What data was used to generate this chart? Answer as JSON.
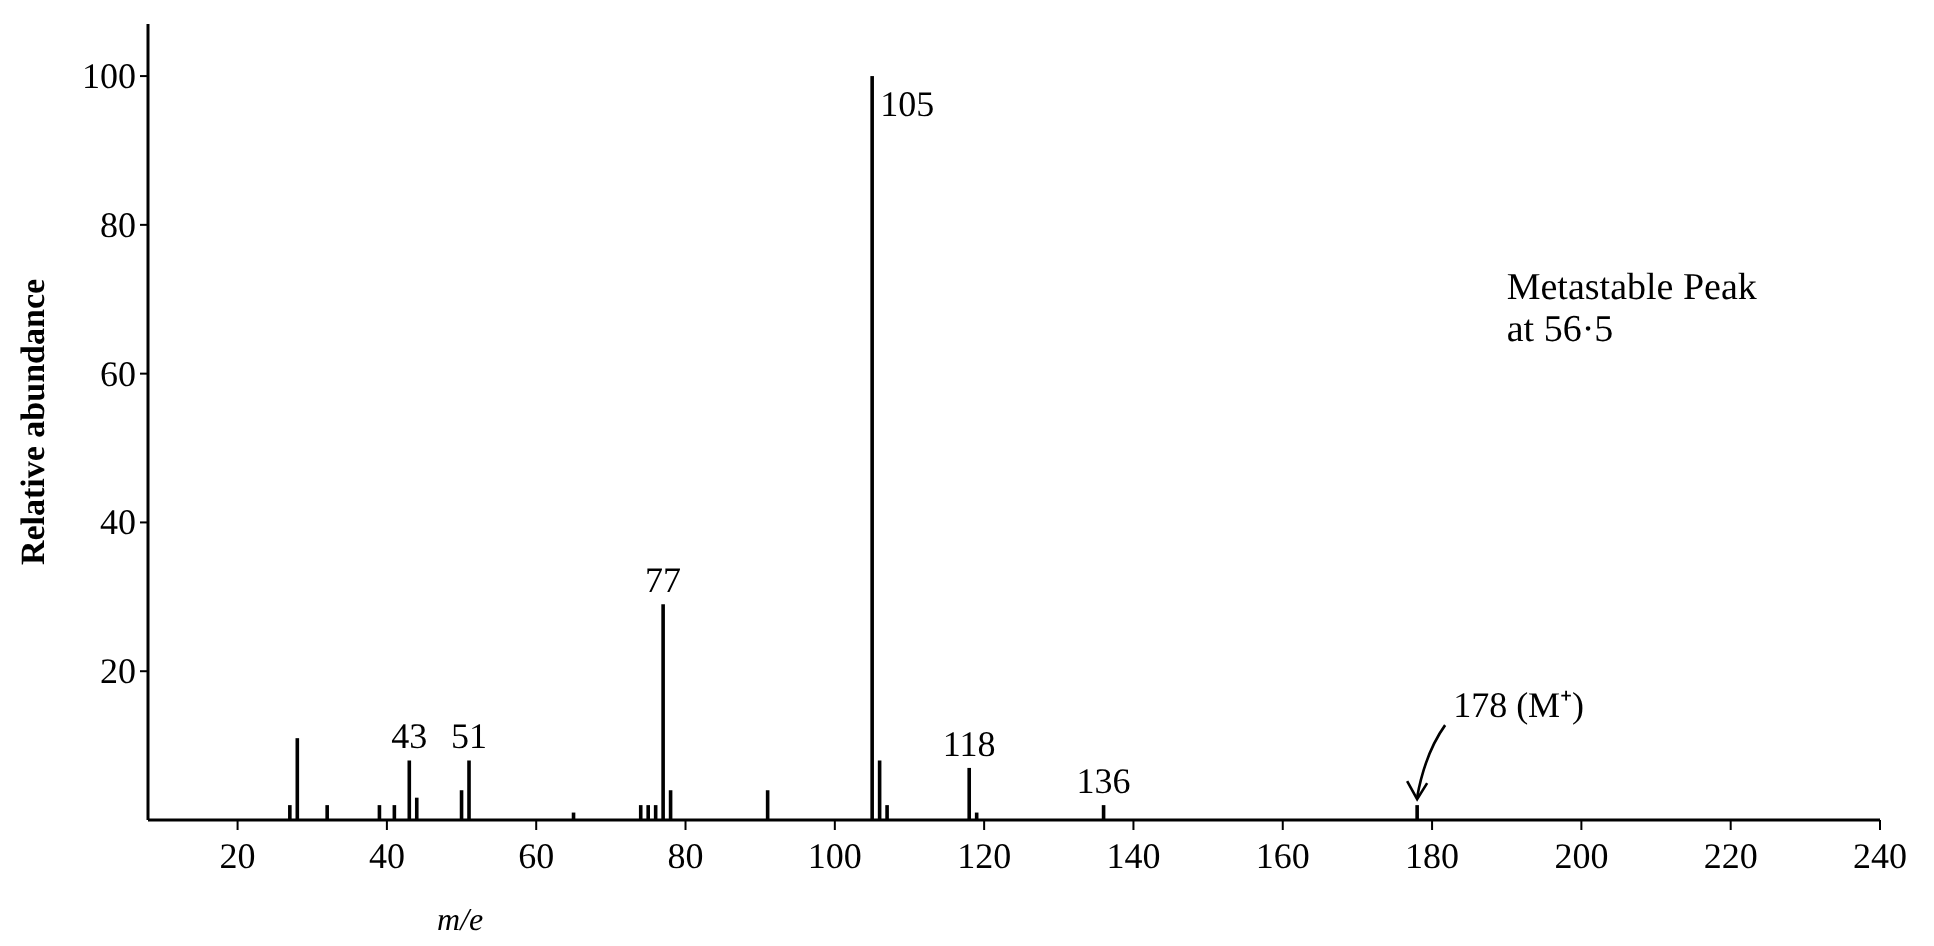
{
  "chart_data": {
    "type": "bar",
    "xlabel": "m/e",
    "ylabel": "Relative abundance",
    "x": [
      27,
      28,
      32,
      39,
      41,
      43,
      44,
      50,
      51,
      65,
      74,
      75,
      76,
      77,
      78,
      91,
      105,
      106,
      107,
      118,
      119,
      136,
      178
    ],
    "values": [
      2,
      11,
      2,
      2,
      2,
      8,
      3,
      4,
      8,
      1,
      2,
      2,
      2,
      29,
      4,
      4,
      100,
      8,
      2,
      7,
      1,
      2,
      2
    ],
    "color": "#000000",
    "xlim": [
      8,
      240
    ],
    "xticks": [
      20,
      40,
      60,
      80,
      100,
      120,
      140,
      160,
      180,
      200,
      220,
      240
    ],
    "ylim": [
      0,
      107
    ],
    "yticks": [
      20,
      40,
      60,
      80,
      100
    ],
    "annotations": [
      {
        "text": "43",
        "x": 43,
        "y": 8
      },
      {
        "text": "51",
        "x": 51,
        "y": 8
      },
      {
        "text": "77",
        "x": 77,
        "y": 29
      },
      {
        "text": "105",
        "x": 105,
        "y": 100
      },
      {
        "text": "118",
        "x": 118,
        "y": 7
      },
      {
        "text": "136",
        "x": 136,
        "y": 2
      },
      {
        "text": "178 (M⁺)",
        "x": 178,
        "y": 2
      },
      "Metastable Peak\nat 56·5"
    ]
  }
}
